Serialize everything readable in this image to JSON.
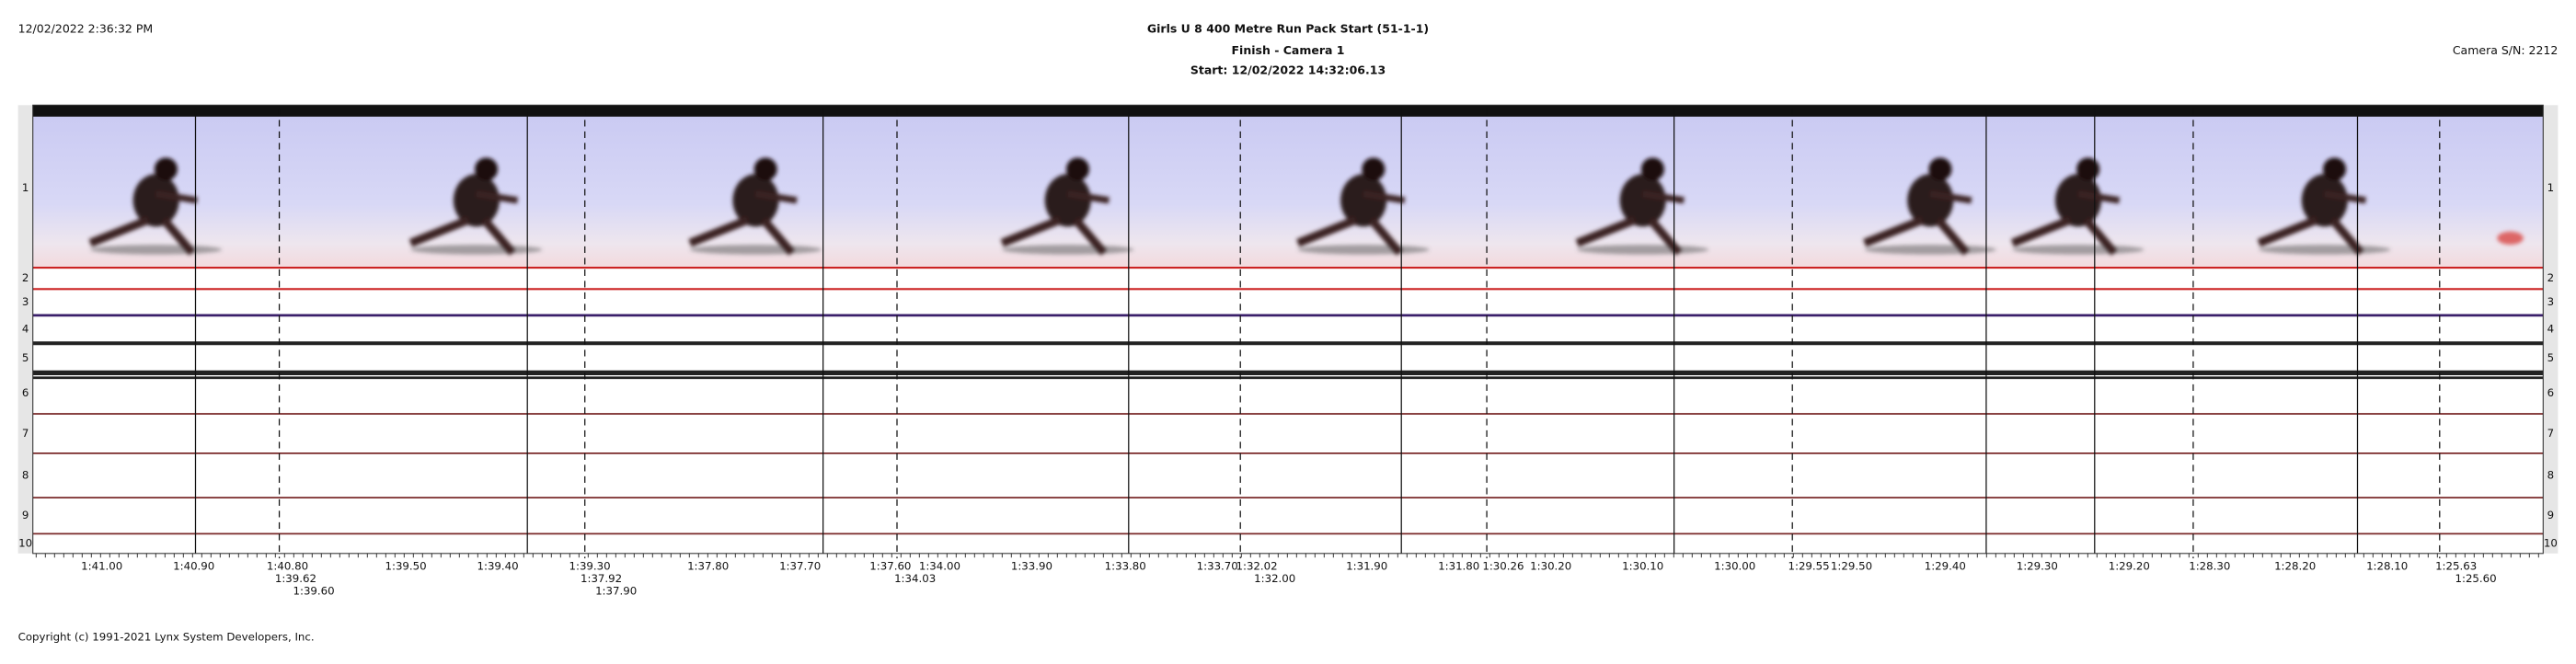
{
  "header": {
    "timestamp": "12/02/2022 2:36:32 PM",
    "title": "Girls U 8 400 Metre Run Pack Start (51-1-1)",
    "subtitle": "Finish - Camera 1",
    "start": "Start: 12/02/2022 14:32:06.13",
    "camera": "Camera S/N: 2212"
  },
  "lanes": [
    "1",
    "2",
    "3",
    "4",
    "5",
    "6",
    "7",
    "8",
    "9",
    "10"
  ],
  "time_labels": [
    "1:41.00",
    "1:40.90",
    "1:40.80",
    "1:39.62",
    "1:39.60",
    "1:39.50",
    "1:39.40",
    "1:39.30",
    "1:37.92",
    "1:37.90",
    "1:37.80",
    "1:37.70",
    "1:37.60",
    "1:34.03",
    "1:34.00",
    "1:33.90",
    "1:33.80",
    "1:33.70",
    "1:32.02",
    "1:32.00",
    "1:31.90",
    "1:31.80",
    "1:30.26",
    "1:30.20",
    "1:30.10",
    "1:30.00",
    "1:29.55",
    "1:29.50",
    "1:29.40",
    "1:29.30",
    "1:29.20",
    "1:28.30",
    "1:28.20",
    "1:28.10",
    "1:25.63",
    "1:25.60"
  ],
  "footer": {
    "copyright": "Copyright (c) 1991-2021 Lynx System Developers, Inc."
  }
}
